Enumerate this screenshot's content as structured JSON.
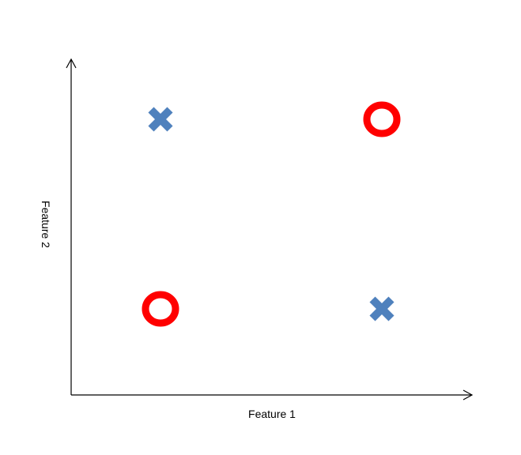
{
  "axes": {
    "x_label": "Feature 1",
    "y_label": "Feature 2"
  },
  "colors": {
    "axis": "#000000",
    "cross": "#4f81bd",
    "circle": "#ff0000"
  },
  "points": [
    {
      "id": "top-left",
      "marker": "cross",
      "feature1": 0,
      "feature2": 1
    },
    {
      "id": "top-right",
      "marker": "circle",
      "feature1": 1,
      "feature2": 1
    },
    {
      "id": "bottom-left",
      "marker": "circle",
      "feature1": 0,
      "feature2": 0
    },
    {
      "id": "bottom-right",
      "marker": "cross",
      "feature1": 1,
      "feature2": 0
    }
  ]
}
